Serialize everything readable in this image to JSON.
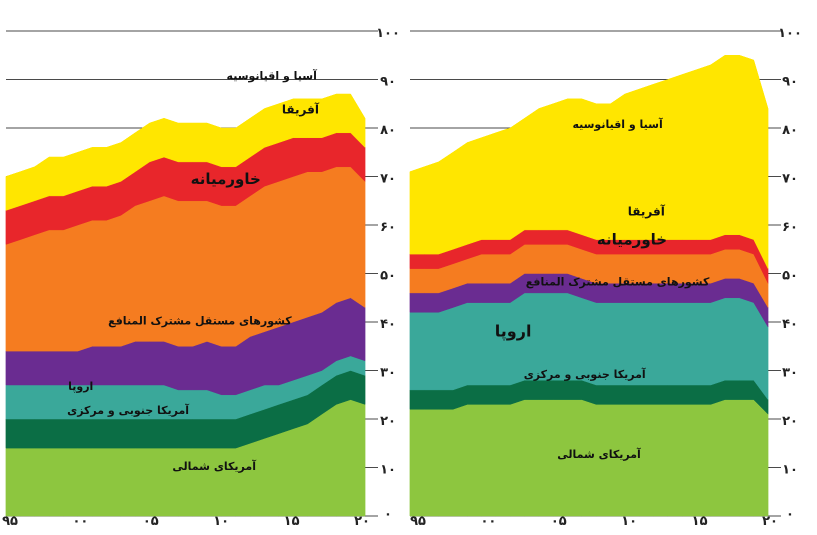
{
  "chart_data": [
    {
      "type": "area",
      "stacked": true,
      "x_tick_labels": [
        "۹۵",
        "۰۰",
        "۰۵",
        "۱۰",
        "۱۵",
        "۲۰"
      ],
      "y_tick_labels": [
        "۰",
        "۱۰",
        "۲۰",
        "۳۰",
        "۴۰",
        "۵۰",
        "۶۰",
        "۷۰",
        "۸۰",
        "۹۰",
        "۱۰۰"
      ],
      "xlim": [
        1995,
        2020
      ],
      "ylim": [
        0,
        100
      ],
      "grid": true,
      "x": [
        1995,
        1996,
        1997,
        1998,
        1999,
        2000,
        2001,
        2002,
        2003,
        2004,
        2005,
        2006,
        2007,
        2008,
        2009,
        2010,
        2011,
        2012,
        2013,
        2014,
        2015,
        2016,
        2017,
        2018,
        2019,
        2020
      ],
      "series": [
        {
          "name": "آمریکای شمالی",
          "color": "#8dc63f",
          "values": [
            14,
            14,
            14,
            14,
            14,
            14,
            14,
            14,
            14,
            14,
            14,
            14,
            14,
            14,
            14,
            14,
            14,
            15,
            16,
            17,
            18,
            19,
            21,
            23,
            24,
            23
          ]
        },
        {
          "name": "آمریکا جنوبی و مرکزی",
          "color": "#0b6e45",
          "values": [
            6,
            6,
            6,
            6,
            6,
            6,
            6,
            6,
            6,
            6,
            6,
            6,
            6,
            6,
            6,
            6,
            6,
            6,
            6,
            6,
            6,
            6,
            6,
            6,
            6,
            6
          ]
        },
        {
          "name": "اروپا",
          "color": "#3aa89a",
          "values": [
            7,
            7,
            7,
            7,
            7,
            7,
            7,
            7,
            7,
            7,
            7,
            7,
            6,
            6,
            6,
            5,
            5,
            5,
            5,
            4,
            4,
            4,
            3,
            3,
            3,
            3
          ]
        },
        {
          "name": "کشورهای مستقل مشترک المنافع",
          "color": "#6a2c91",
          "values": [
            7,
            7,
            7,
            7,
            7,
            7,
            8,
            8,
            8,
            9,
            9,
            9,
            9,
            9,
            10,
            10,
            10,
            11,
            11,
            12,
            12,
            12,
            12,
            12,
            12,
            11
          ]
        },
        {
          "name": "خاورمیانه",
          "color": "#f57c20",
          "values": [
            22,
            23,
            24,
            25,
            25,
            26,
            26,
            26,
            27,
            28,
            29,
            30,
            30,
            30,
            29,
            29,
            29,
            29,
            30,
            30,
            30,
            30,
            29,
            28,
            27,
            26
          ]
        },
        {
          "name": "آفریقا",
          "color": "#e8262b",
          "values": [
            7,
            7,
            7,
            7,
            7,
            7,
            7,
            7,
            7,
            7,
            8,
            8,
            8,
            8,
            8,
            8,
            8,
            8,
            8,
            8,
            8,
            7,
            7,
            7,
            7,
            7
          ]
        },
        {
          "name": "آسیا و اقیانوسیه",
          "color": "#ffe600",
          "values": [
            7,
            7,
            7,
            8,
            8,
            8,
            8,
            8,
            8,
            8,
            8,
            8,
            8,
            8,
            8,
            8,
            8,
            8,
            8,
            8,
            8,
            8,
            8,
            8,
            8,
            6
          ]
        }
      ],
      "labels": [
        {
          "series": "آسیا و اقیانوسیه",
          "text": "آسیا و اقیانوسیه"
        },
        {
          "series": "آفریقا",
          "text": "آفریقا"
        },
        {
          "series": "خاورمیانه",
          "text": "خاورمیانه"
        },
        {
          "series": "کشورهای مستقل مشترک المنافع",
          "text": "کشورهای مستقل مشترک المنافع"
        },
        {
          "series": "اروپا",
          "text": "اروپا"
        },
        {
          "series": "آمریکا جنوبی و مرکزی",
          "text": "آمریکا جنوبی و مرکزی"
        },
        {
          "series": "آمریکای شمالی",
          "text": "آمریکای شمالی"
        }
      ]
    },
    {
      "type": "area",
      "stacked": true,
      "x_tick_labels": [
        "۹۵",
        "۰۰",
        "۰۵",
        "۱۰",
        "۱۵",
        "۲۰"
      ],
      "y_tick_labels": [
        "۰",
        "۱۰",
        "۲۰",
        "۳۰",
        "۴۰",
        "۵۰",
        "۶۰",
        "۷۰",
        "۸۰",
        "۹۰",
        "۱۰۰"
      ],
      "xlim": [
        1995,
        2020
      ],
      "ylim": [
        0,
        100
      ],
      "grid": true,
      "x": [
        1995,
        1996,
        1997,
        1998,
        1999,
        2000,
        2001,
        2002,
        2003,
        2004,
        2005,
        2006,
        2007,
        2008,
        2009,
        2010,
        2011,
        2012,
        2013,
        2014,
        2015,
        2016,
        2017,
        2018,
        2019,
        2020
      ],
      "series": [
        {
          "name": "آمریکای شمالی",
          "color": "#8dc63f",
          "values": [
            22,
            22,
            22,
            22,
            23,
            23,
            23,
            23,
            24,
            24,
            24,
            24,
            24,
            23,
            23,
            23,
            23,
            23,
            23,
            23,
            23,
            23,
            24,
            24,
            24,
            21
          ]
        },
        {
          "name": "آمریکا جنوبی و مرکزی",
          "color": "#0b6e45",
          "values": [
            4,
            4,
            4,
            4,
            4,
            4,
            4,
            4,
            4,
            4,
            4,
            4,
            4,
            4,
            4,
            4,
            4,
            4,
            4,
            4,
            4,
            4,
            4,
            4,
            4,
            3
          ]
        },
        {
          "name": "اروپا",
          "color": "#3aa89a",
          "values": [
            16,
            16,
            16,
            17,
            17,
            17,
            17,
            17,
            18,
            18,
            18,
            18,
            17,
            17,
            17,
            17,
            17,
            17,
            17,
            17,
            17,
            17,
            17,
            17,
            16,
            15
          ]
        },
        {
          "name": "کشورهای مستقل مشترک المنافع",
          "color": "#6a2c91",
          "values": [
            4,
            4,
            4,
            4,
            4,
            4,
            4,
            4,
            4,
            4,
            4,
            4,
            4,
            4,
            4,
            4,
            4,
            4,
            4,
            4,
            4,
            4,
            4,
            4,
            4,
            4
          ]
        },
        {
          "name": "خاورمیانه",
          "color": "#f57c20",
          "values": [
            5,
            5,
            5,
            5,
            5,
            6,
            6,
            6,
            6,
            6,
            6,
            6,
            6,
            6,
            6,
            6,
            6,
            6,
            6,
            6,
            6,
            6,
            6,
            6,
            6,
            5
          ]
        },
        {
          "name": "آفریقا",
          "color": "#e8262b",
          "values": [
            3,
            3,
            3,
            3,
            3,
            3,
            3,
            3,
            3,
            3,
            3,
            3,
            3,
            3,
            3,
            3,
            3,
            3,
            3,
            3,
            3,
            3,
            3,
            3,
            3,
            3
          ]
        },
        {
          "name": "آسیا و اقیانوسیه",
          "color": "#ffe600",
          "values": [
            17,
            18,
            19,
            20,
            21,
            21,
            22,
            23,
            23,
            25,
            26,
            27,
            28,
            28,
            28,
            30,
            31,
            32,
            33,
            34,
            35,
            36,
            37,
            37,
            37,
            33
          ]
        }
      ],
      "labels": [
        {
          "series": "آسیا و اقیانوسیه",
          "text": "آسیا و اقیانوسیه"
        },
        {
          "series": "آفریقا",
          "text": "آفریقا"
        },
        {
          "series": "خاورمیانه",
          "text": "خاورمیانه"
        },
        {
          "series": "کشورهای مستقل مشترک المنافع",
          "text": "کشورهای مستقل مشترک المنافع"
        },
        {
          "series": "اروپا",
          "text": "اروپا"
        },
        {
          "series": "آمریکا جنوبی و مرکزی",
          "text": "آمریکا جنوبی و مرکزی"
        },
        {
          "series": "آمریکای شمالی",
          "text": "آمریکای شمالی"
        }
      ]
    }
  ]
}
